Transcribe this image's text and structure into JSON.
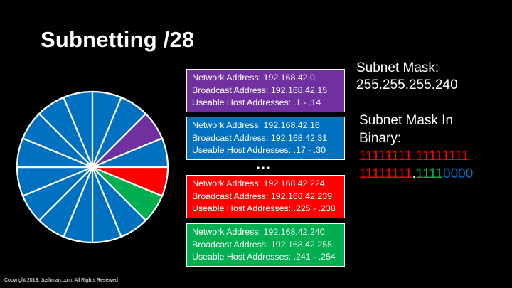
{
  "title": "Subnetting /28",
  "colors": {
    "purple": "#7030a0",
    "blue": "#0070c0",
    "red": "#ff0000",
    "green": "#00b050",
    "white": "#ffffff"
  },
  "pie": {
    "slice_count": 16,
    "highlighted": [
      {
        "index": 0,
        "color": "purple",
        "label": "Network 192.168.42.0"
      },
      {
        "index": 14,
        "color": "red",
        "label": "Network 192.168.42.224"
      },
      {
        "index": 15,
        "color": "green",
        "label": "Network 192.168.42.240"
      }
    ],
    "default_color": "blue"
  },
  "subnets": [
    {
      "color": "#7030a0",
      "network": "Network Address: 192.168.42.0",
      "broadcast": "Broadcast Address: 192.168.42.15",
      "hosts": "Useable Host Addresses: .1 - .14"
    },
    {
      "color": "#0070c0",
      "network": "Network Address: 192.168.42.16",
      "broadcast": "Broadcast Address: 192.168.42.31",
      "hosts": "Useable Host Addresses: .17 - .30"
    },
    {
      "color": "#ff0000",
      "network": "Network Address: 192.168.42.224",
      "broadcast": "Broadcast Address: 192.168.42.239",
      "hosts": "Useable Host Addresses: .225 - .238"
    },
    {
      "color": "#00b050",
      "network": "Network Address: 192.168.42.240",
      "broadcast": "Broadcast Address: 192.168.42.255",
      "hosts": "Useable Host Addresses: .241 - .254"
    }
  ],
  "ellipsis": "…",
  "subnet_mask": {
    "label": "Subnet Mask:",
    "value": "255.255.255.240"
  },
  "binary": {
    "label": "Subnet Mask In Binary:",
    "line1": "11111111.11111111.",
    "line2_red": "11111111",
    "line2_dot": ".",
    "line2_green": "1111",
    "line2_blue": "0000"
  },
  "copyright": "Copyright 2019, Joshman.com, All Rights Reserved"
}
